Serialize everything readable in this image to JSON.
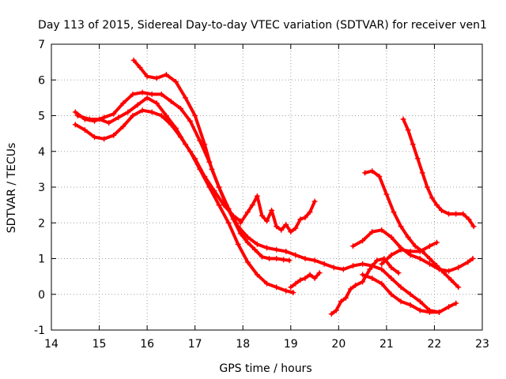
{
  "chart_data": {
    "type": "scatter",
    "title": "Day 113 of 2015, Sidereal Day-to-day VTEC variation (SDTVAR) for receiver ven1",
    "xlabel": "GPS time / hours",
    "ylabel": "SDTVAR / TECUs",
    "xlim": [
      14,
      23
    ],
    "ylim": [
      -1,
      7
    ],
    "xticks": [
      "14",
      "15",
      "16",
      "17",
      "18",
      "19",
      "20",
      "21",
      "22",
      "23"
    ],
    "yticks": [
      "-1",
      "0",
      "1",
      "2",
      "3",
      "4",
      "5",
      "6",
      "7"
    ],
    "grid": true,
    "marker": "+",
    "color": "#ff0000",
    "series": [
      {
        "name": "s1",
        "x": [
          15.72,
          15.85,
          16.0,
          16.2,
          16.4,
          16.6,
          16.8,
          17.0,
          17.2,
          17.35,
          17.5,
          17.65,
          17.8,
          17.95,
          18.1,
          18.25,
          18.4,
          18.55,
          18.7,
          18.85,
          18.97
        ],
        "y": [
          6.55,
          6.35,
          6.1,
          6.05,
          6.15,
          5.95,
          5.5,
          5.0,
          4.2,
          3.5,
          3.0,
          2.5,
          2.1,
          1.7,
          1.45,
          1.25,
          1.05,
          1.0,
          1.0,
          0.97,
          0.95
        ]
      },
      {
        "name": "s2",
        "x": [
          14.5,
          14.7,
          14.9,
          15.1,
          15.3,
          15.5,
          15.7,
          15.9,
          16.1,
          16.3,
          16.5,
          16.7,
          16.9,
          17.1,
          17.3,
          17.5,
          17.7,
          17.9,
          18.1,
          18.3,
          18.5,
          18.7,
          18.9,
          19.1,
          19.3,
          19.5,
          19.7,
          19.9,
          20.1,
          20.3,
          20.5,
          20.7,
          20.9,
          21.1,
          21.3,
          21.5,
          21.7,
          21.9,
          22.1,
          22.3,
          22.45
        ],
        "y": [
          5.1,
          4.9,
          4.85,
          4.95,
          5.05,
          5.35,
          5.6,
          5.65,
          5.6,
          5.6,
          5.4,
          5.2,
          4.85,
          4.3,
          3.7,
          3.0,
          2.4,
          1.9,
          1.6,
          1.4,
          1.3,
          1.25,
          1.2,
          1.1,
          1.0,
          0.95,
          0.85,
          0.75,
          0.7,
          0.8,
          0.85,
          0.8,
          0.7,
          0.45,
          0.2,
          0.0,
          -0.2,
          -0.45,
          -0.5,
          -0.35,
          -0.25
        ]
      },
      {
        "name": "s3",
        "x": [
          14.5,
          14.7,
          14.9,
          15.1,
          15.3,
          15.5,
          15.7,
          15.9,
          16.1,
          16.3,
          16.5,
          16.7,
          16.9,
          17.1,
          17.3,
          17.5,
          17.7,
          17.9,
          18.1,
          18.3,
          18.5,
          18.7,
          18.9,
          19.05
        ],
        "y": [
          4.75,
          4.6,
          4.4,
          4.35,
          4.45,
          4.7,
          5.0,
          5.15,
          5.1,
          5.0,
          4.75,
          4.4,
          4.0,
          3.5,
          3.0,
          2.5,
          2.0,
          1.4,
          0.9,
          0.55,
          0.3,
          0.2,
          0.1,
          0.05
        ]
      },
      {
        "name": "s4",
        "x": [
          14.55,
          14.8,
          15.0,
          15.2,
          15.4,
          15.6,
          15.8,
          16.0,
          16.2,
          16.4,
          16.6,
          16.8,
          17.0,
          17.2,
          17.4,
          17.6,
          17.8,
          17.95
        ],
        "y": [
          5.0,
          4.9,
          4.9,
          4.8,
          4.95,
          5.1,
          5.3,
          5.5,
          5.35,
          5.0,
          4.65,
          4.2,
          3.8,
          3.3,
          2.9,
          2.5,
          2.2,
          2.05
        ]
      },
      {
        "name": "s5",
        "x": [
          17.95,
          18.1,
          18.2,
          18.3,
          18.4,
          18.5,
          18.6,
          18.7,
          18.8,
          18.9,
          19.0,
          19.1,
          19.2,
          19.3,
          19.4,
          19.5
        ],
        "y": [
          2.0,
          2.3,
          2.5,
          2.75,
          2.2,
          2.05,
          2.35,
          1.9,
          1.8,
          1.95,
          1.75,
          1.85,
          2.1,
          2.15,
          2.3,
          2.6
        ]
      },
      {
        "name": "s6",
        "x": [
          19.0,
          19.1,
          19.2,
          19.3,
          19.4,
          19.5,
          19.6
        ],
        "y": [
          0.2,
          0.3,
          0.4,
          0.45,
          0.55,
          0.45,
          0.6
        ]
      },
      {
        "name": "s7",
        "x": [
          19.85,
          19.95,
          20.05,
          20.15,
          20.25,
          20.35,
          20.5,
          20.65,
          20.8,
          20.95,
          21.1,
          21.25
        ],
        "y": [
          -0.55,
          -0.45,
          -0.2,
          -0.1,
          0.15,
          0.25,
          0.35,
          0.7,
          0.95,
          1.0,
          0.75,
          0.6
        ]
      },
      {
        "name": "s8",
        "x": [
          20.55,
          20.7,
          20.85,
          21.0,
          21.15,
          21.3,
          21.45,
          21.6,
          21.75,
          21.9,
          22.05,
          22.2,
          22.35,
          22.5
        ],
        "y": [
          3.4,
          3.45,
          3.3,
          2.8,
          2.3,
          1.9,
          1.6,
          1.35,
          1.2,
          1.0,
          0.8,
          0.6,
          0.4,
          0.2
        ]
      },
      {
        "name": "s9",
        "x": [
          20.3,
          20.5,
          20.7,
          20.9,
          21.1,
          21.3,
          21.5,
          21.7,
          21.9,
          22.1,
          22.3,
          22.5,
          22.7,
          22.8
        ],
        "y": [
          1.35,
          1.5,
          1.75,
          1.8,
          1.6,
          1.3,
          1.1,
          1.0,
          0.85,
          0.7,
          0.65,
          0.75,
          0.9,
          1.0
        ]
      },
      {
        "name": "s10",
        "x": [
          20.5,
          20.7,
          20.9,
          21.1,
          21.3,
          21.5,
          21.7,
          21.9,
          22.1
        ],
        "y": [
          0.55,
          0.45,
          0.3,
          0.0,
          -0.2,
          -0.3,
          -0.45,
          -0.5,
          -0.5
        ]
      },
      {
        "name": "s11",
        "x": [
          20.9,
          21.1,
          21.3,
          21.5,
          21.7,
          21.9,
          22.05
        ],
        "y": [
          0.85,
          1.1,
          1.25,
          1.2,
          1.2,
          1.35,
          1.45
        ]
      },
      {
        "name": "s12",
        "x": [
          21.35,
          21.45,
          21.55,
          21.65,
          21.75,
          21.85,
          21.95,
          22.05,
          22.15,
          22.3,
          22.45,
          22.6,
          22.72,
          22.82
        ],
        "y": [
          4.9,
          4.6,
          4.2,
          3.8,
          3.4,
          3.0,
          2.7,
          2.5,
          2.35,
          2.25,
          2.25,
          2.25,
          2.1,
          1.9
        ]
      }
    ]
  }
}
